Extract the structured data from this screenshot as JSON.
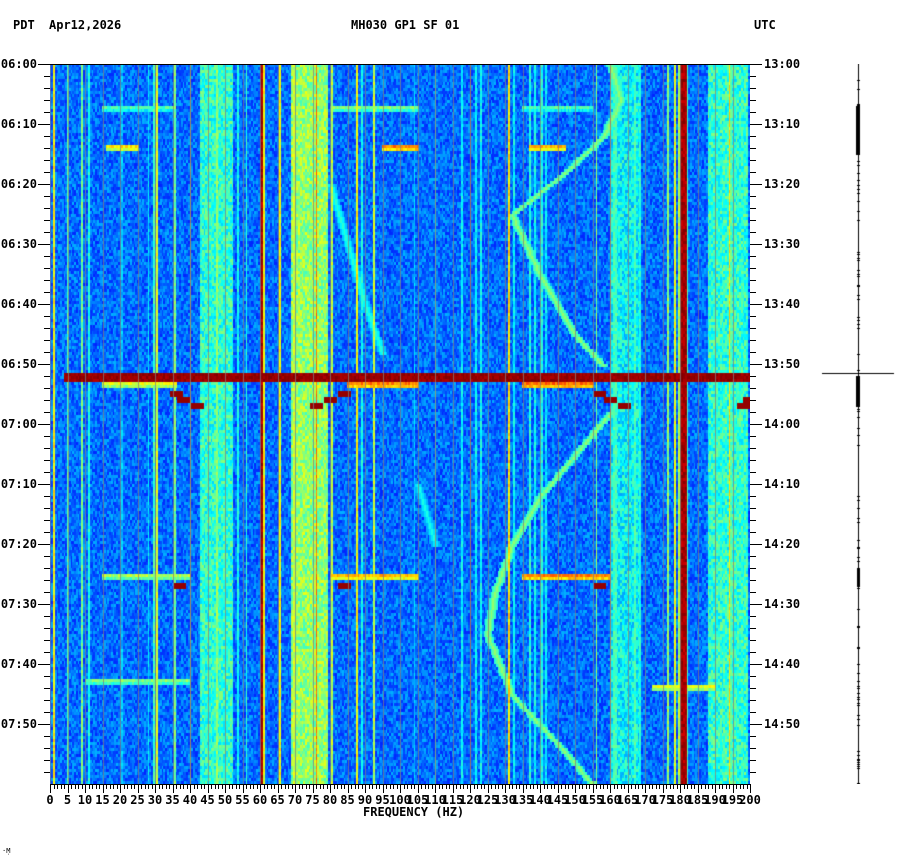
{
  "header": {
    "tz_left": "PDT",
    "date": "Apr12,2026",
    "station": "MH030 GP1 SF 01",
    "tz_right": "UTC"
  },
  "axes": {
    "left_labels": [
      "06:00",
      "06:10",
      "06:20",
      "06:30",
      "06:40",
      "06:50",
      "07:00",
      "07:10",
      "07:20",
      "07:30",
      "07:40",
      "07:50"
    ],
    "right_labels": [
      "13:00",
      "13:10",
      "13:20",
      "13:30",
      "13:40",
      "13:50",
      "14:00",
      "14:10",
      "14:20",
      "14:30",
      "14:40",
      "14:50"
    ],
    "x_labels": [
      "0",
      "5",
      "10",
      "15",
      "20",
      "25",
      "30",
      "35",
      "40",
      "45",
      "50",
      "55",
      "60",
      "65",
      "70",
      "75",
      "80",
      "85",
      "90",
      "95",
      "100",
      "105",
      "110",
      "115",
      "120",
      "125",
      "130",
      "135",
      "140",
      "145",
      "150",
      "155",
      "160",
      "165",
      "170",
      "175",
      "180",
      "185",
      "190",
      "195",
      "200"
    ],
    "x_title": "FREQUENCY (HZ)"
  },
  "corner_mark": "·Ṃ",
  "chart_data": {
    "type": "heatmap",
    "title": "MH030 GP1 SF 01",
    "subtitle": "Apr12,2026",
    "xlabel": "FREQUENCY (HZ)",
    "ylabel_left": "PDT",
    "ylabel_right": "UTC",
    "xlim": [
      0,
      200
    ],
    "ylim_minutes": [
      0,
      120
    ],
    "y_start_local": "06:00",
    "y_start_utc": "13:00",
    "y_tick_interval_minutes": 10,
    "x_tick_interval_hz": 5,
    "colormap": [
      "#00008f",
      "#0000ff",
      "#0080ff",
      "#00ffff",
      "#80ff80",
      "#ffff00",
      "#ff8000",
      "#ff0000",
      "#800000"
    ],
    "steady_lines_hz": [
      {
        "hz": 60,
        "level": 1.0,
        "width": 1.2
      },
      {
        "hz": 180,
        "level": 1.0,
        "width": 2.0
      },
      {
        "hz": 40,
        "level": 0.75,
        "width": 0.4
      },
      {
        "hz": 76,
        "level": 0.8,
        "width": 0.4
      },
      {
        "hz": 120,
        "level": 0.85,
        "width": 0.3
      },
      {
        "hz": 131,
        "level": 0.7,
        "width": 0.3
      },
      {
        "hz": 160,
        "level": 0.75,
        "width": 0.4
      },
      {
        "hz": 194,
        "level": 0.7,
        "width": 0.4
      }
    ],
    "broad_bands_hz": [
      {
        "from": 43,
        "to": 52,
        "level": 0.45
      },
      {
        "from": 69,
        "to": 79,
        "level": 0.55
      },
      {
        "from": 160,
        "to": 168,
        "level": 0.4
      },
      {
        "from": 188,
        "to": 199,
        "level": 0.45
      }
    ],
    "broadband_event": {
      "minute": 51.5,
      "duration_minutes": 0.8,
      "from_hz": 4,
      "to_hz": 200,
      "level": 1.0
    },
    "transient_segments": [
      {
        "minute": 7,
        "from_hz": 15,
        "to_hz": 35,
        "level": 0.4
      },
      {
        "minute": 7,
        "from_hz": 80,
        "to_hz": 105,
        "level": 0.45
      },
      {
        "minute": 7,
        "from_hz": 135,
        "to_hz": 155,
        "level": 0.4
      },
      {
        "minute": 13.3,
        "from_hz": 16,
        "to_hz": 25,
        "level": 0.6
      },
      {
        "minute": 13.3,
        "from_hz": 95,
        "to_hz": 105,
        "level": 0.7
      },
      {
        "minute": 13.3,
        "from_hz": 137,
        "to_hz": 147,
        "level": 0.65
      },
      {
        "minute": 53,
        "from_hz": 15,
        "to_hz": 36,
        "level": 0.55
      },
      {
        "minute": 53,
        "from_hz": 85,
        "to_hz": 105,
        "level": 0.7
      },
      {
        "minute": 53,
        "from_hz": 135,
        "to_hz": 155,
        "level": 0.72
      },
      {
        "minute": 85,
        "from_hz": 15,
        "to_hz": 40,
        "level": 0.5
      },
      {
        "minute": 85,
        "from_hz": 80,
        "to_hz": 105,
        "level": 0.65
      },
      {
        "minute": 85,
        "from_hz": 135,
        "to_hz": 160,
        "level": 0.7
      },
      {
        "minute": 102.5,
        "from_hz": 10,
        "to_hz": 40,
        "level": 0.45
      },
      {
        "minute": 103.5,
        "from_hz": 172,
        "to_hz": 190,
        "level": 0.55
      }
    ],
    "stepped_red_tones": [
      {
        "minute": 54.5,
        "hz": 36
      },
      {
        "minute": 55.5,
        "hz": 38
      },
      {
        "minute": 56.5,
        "hz": 42
      },
      {
        "minute": 56.5,
        "hz": 76
      },
      {
        "minute": 55.5,
        "hz": 80
      },
      {
        "minute": 54.5,
        "hz": 84
      },
      {
        "minute": 54.5,
        "hz": 157
      },
      {
        "minute": 55.5,
        "hz": 160
      },
      {
        "minute": 56.5,
        "hz": 164
      },
      {
        "minute": 56.5,
        "hz": 198
      },
      {
        "minute": 55.5,
        "hz": 200
      },
      {
        "minute": 86.5,
        "hz": 37
      },
      {
        "minute": 86.5,
        "hz": 84
      },
      {
        "minute": 86.5,
        "hz": 157
      }
    ],
    "drifting_tones": [
      {
        "points": [
          [
            0,
            160
          ],
          [
            6,
            163
          ],
          [
            12,
            158
          ],
          [
            18,
            147
          ],
          [
            25,
            132
          ],
          [
            35,
            140
          ],
          [
            45,
            150
          ],
          [
            50,
            158
          ]
        ],
        "level": 0.42
      },
      {
        "points": [
          [
            58,
            160
          ],
          [
            65,
            150
          ],
          [
            72,
            140
          ],
          [
            80,
            132
          ],
          [
            88,
            127
          ],
          [
            95,
            125
          ],
          [
            105,
            132
          ],
          [
            115,
            148
          ],
          [
            120,
            155
          ]
        ],
        "level": 0.42
      },
      {
        "points": [
          [
            20,
            80
          ],
          [
            30,
            85
          ],
          [
            40,
            90
          ],
          [
            48,
            95
          ]
        ],
        "level": 0.32
      },
      {
        "points": [
          [
            70,
            105
          ],
          [
            80,
            110
          ]
        ],
        "level": 0.3
      }
    ],
    "seismogram": {
      "bursts": [
        {
          "from_minute": 7,
          "to_minute": 15,
          "amplitude": 2
        },
        {
          "from_minute": 51.5,
          "to_minute": 51.5,
          "amplitude": 36
        },
        {
          "from_minute": 52,
          "to_minute": 57,
          "amplitude": 2
        },
        {
          "from_minute": 84,
          "to_minute": 87,
          "amplitude": 1.5
        }
      ]
    }
  }
}
